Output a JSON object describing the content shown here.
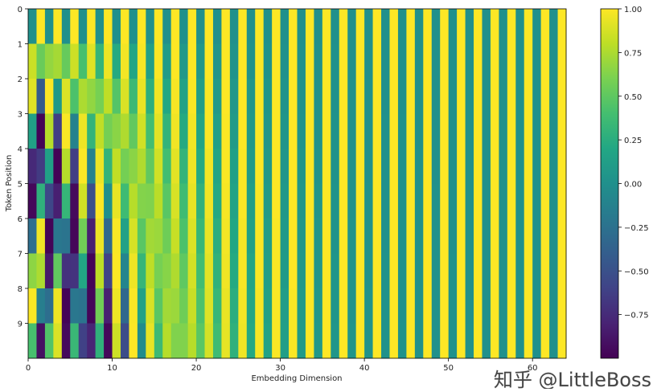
{
  "chart_data": {
    "type": "heatmap",
    "xlabel": "Embedding Dimension",
    "ylabel": "Token Position",
    "xlim": [
      0,
      64
    ],
    "ylim": [
      0,
      10
    ],
    "x_ticks": [
      "0",
      "10",
      "20",
      "30",
      "40",
      "50",
      "60"
    ],
    "y_ticks": [
      "0",
      "1",
      "2",
      "3",
      "4",
      "5",
      "6",
      "7",
      "8",
      "9"
    ],
    "colormap": "viridis",
    "color_range": [
      -1,
      1
    ],
    "colorbar_ticks": [
      "1.00",
      "0.75",
      "0.50",
      "0.25",
      "0.00",
      "−0.25",
      "−0.50",
      "−0.75"
    ],
    "grid": false,
    "rows": [
      [
        0,
        1,
        0,
        1,
        0,
        1,
        0,
        1,
        0,
        1,
        0,
        1,
        0,
        1,
        0,
        1,
        0,
        1,
        0,
        1,
        0,
        1,
        0,
        1,
        0,
        1,
        0,
        1,
        0,
        1,
        0,
        1,
        0,
        1,
        0,
        1,
        0,
        1,
        0,
        1,
        0,
        1,
        0,
        1,
        0,
        1,
        0,
        1,
        0,
        1,
        0,
        1,
        0,
        1,
        0,
        1,
        0,
        1,
        0,
        1,
        0,
        1,
        0,
        1
      ],
      [
        0.84,
        0.54,
        0.68,
        0.73,
        0.53,
        0.85,
        0.41,
        0.91,
        0.31,
        0.95,
        0.23,
        0.97,
        0.18,
        0.98,
        0.13,
        0.99,
        0.1,
        1,
        0.07,
        1,
        0.06,
        1,
        0.04,
        1,
        0.03,
        1,
        0.02,
        1,
        0.02,
        1,
        0.01,
        1,
        0.01,
        1,
        0.01,
        1,
        0.01,
        1,
        0,
        1,
        0,
        1,
        0,
        1,
        0,
        1,
        0,
        1,
        0,
        1,
        0,
        1,
        0,
        1,
        0,
        1,
        0,
        1,
        0,
        1,
        0,
        1,
        0,
        1
      ],
      [
        0.91,
        -0.42,
        1.0,
        0.07,
        0.9,
        0.43,
        0.75,
        0.67,
        0.59,
        0.81,
        0.46,
        0.89,
        0.35,
        0.94,
        0.26,
        0.96,
        0.2,
        0.98,
        0.15,
        0.99,
        0.11,
        0.99,
        0.08,
        1,
        0.06,
        1,
        0.05,
        1,
        0.04,
        1,
        0.03,
        1,
        0.02,
        1,
        0.02,
        1,
        0.01,
        1,
        0.01,
        1,
        0.01,
        1,
        0,
        1,
        0,
        1,
        0,
        1,
        0,
        1,
        0,
        1,
        0,
        1,
        0,
        1,
        0,
        1,
        0,
        1,
        0,
        1,
        0,
        1
      ],
      [
        0.14,
        -0.99,
        0.78,
        -0.63,
        0.99,
        -0.12,
        0.95,
        0.3,
        0.81,
        0.58,
        0.65,
        0.76,
        0.51,
        0.86,
        0.39,
        0.92,
        0.3,
        0.96,
        0.22,
        0.97,
        0.17,
        0.99,
        0.13,
        0.99,
        0.09,
        1,
        0.07,
        1,
        0.05,
        1,
        0.04,
        1,
        0.03,
        1,
        0.02,
        1,
        0.02,
        1,
        0.01,
        1,
        0.01,
        1,
        0.01,
        1,
        0.01,
        1,
        0,
        1,
        0,
        1,
        0,
        1,
        0,
        1,
        0,
        1,
        0,
        1,
        0,
        1,
        0,
        1,
        0,
        1
      ],
      [
        -0.76,
        -0.65,
        0.14,
        -0.99,
        0.78,
        -0.63,
        0.99,
        -0.12,
        0.95,
        0.3,
        0.81,
        0.58,
        0.65,
        0.76,
        0.51,
        0.86,
        0.39,
        0.92,
        0.3,
        0.96,
        0.22,
        0.97,
        0.17,
        0.99,
        0.13,
        0.99,
        0.09,
        1,
        0.07,
        1,
        0.05,
        1,
        0.04,
        1,
        0.03,
        1,
        0.02,
        1,
        0.02,
        1,
        0.01,
        1,
        0.01,
        1,
        0.01,
        1,
        0.01,
        1,
        0,
        1,
        0,
        1,
        0,
        1,
        0,
        1,
        0,
        1,
        0,
        1,
        0,
        1,
        0,
        1
      ],
      [
        -0.96,
        0.28,
        -0.57,
        -0.82,
        0.32,
        -0.95,
        0.86,
        -0.51,
        1.0,
        -0.01,
        0.93,
        0.37,
        0.78,
        0.63,
        0.62,
        0.79,
        0.48,
        0.88,
        0.37,
        0.93,
        0.28,
        0.96,
        0.21,
        0.98,
        0.16,
        0.99,
        0.12,
        0.99,
        0.09,
        1,
        0.07,
        1,
        0.05,
        1,
        0.04,
        1,
        0.03,
        1,
        0.02,
        1,
        0.02,
        1,
        0.01,
        1,
        0.01,
        1,
        0.01,
        1,
        0.01,
        1,
        0,
        1,
        0,
        1,
        0,
        1,
        0,
        1,
        0,
        1,
        0,
        1,
        0,
        1
      ],
      [
        -0.28,
        0.96,
        -0.98,
        -0.21,
        -0.23,
        -0.97,
        0.57,
        -0.82,
        0.95,
        -0.32,
        0.99,
        0.15,
        0.88,
        0.48,
        0.72,
        0.7,
        0.56,
        0.83,
        0.43,
        0.9,
        0.33,
        0.94,
        0.25,
        0.97,
        0.19,
        0.98,
        0.14,
        0.99,
        0.11,
        0.99,
        0.08,
        1,
        0.06,
        1,
        0.05,
        1,
        0.03,
        1,
        0.03,
        1,
        0.02,
        1,
        0.01,
        1,
        0.01,
        1,
        0.01,
        1,
        0.01,
        1,
        0,
        1,
        0,
        1,
        0,
        1,
        0,
        1,
        0,
        1,
        0,
        1,
        0,
        1
      ],
      [
        0.66,
        0.75,
        -0.86,
        0.51,
        -0.71,
        -0.7,
        0.19,
        -0.98,
        0.8,
        -0.6,
        1.0,
        -0.09,
        0.95,
        0.32,
        0.8,
        0.59,
        0.64,
        0.76,
        0.5,
        0.87,
        0.38,
        0.92,
        0.29,
        0.96,
        0.22,
        0.98,
        0.17,
        0.99,
        0.12,
        0.99,
        0.09,
        1,
        0.07,
        1,
        0.05,
        1,
        0.04,
        1,
        0.03,
        1,
        0.02,
        1,
        0.02,
        1,
        0.01,
        1,
        0.01,
        1,
        0.01,
        1,
        0.01,
        1,
        0,
        1,
        0,
        1,
        0,
        1,
        0,
        1,
        0,
        1,
        0,
        1
      ],
      [
        0.99,
        -0.15,
        -0.28,
        0.96,
        -0.98,
        -0.21,
        -0.23,
        -0.97,
        0.57,
        -0.82,
        0.95,
        -0.32,
        0.99,
        0.15,
        0.88,
        0.48,
        0.72,
        0.7,
        0.56,
        0.83,
        0.43,
        0.9,
        0.33,
        0.94,
        0.25,
        0.97,
        0.19,
        0.98,
        0.14,
        0.99,
        0.11,
        0.99,
        0.08,
        1,
        0.06,
        1,
        0.04,
        1,
        0.03,
        1,
        0.03,
        1,
        0.02,
        1,
        0.01,
        1,
        0.01,
        1,
        0.01,
        1,
        0.01,
        1,
        0,
        1,
        0,
        1,
        0,
        1,
        0,
        1,
        0,
        1,
        0,
        1
      ],
      [
        0.41,
        -0.91,
        0.45,
        0.89,
        -0.95,
        0.34,
        -0.61,
        -0.79,
        0.29,
        -0.96,
        0.85,
        -0.53,
        1.0,
        -0.03,
        0.93,
        0.36,
        0.78,
        0.62,
        0.62,
        0.78,
        0.48,
        0.87,
        0.37,
        0.93,
        0.28,
        0.96,
        0.21,
        0.98,
        0.16,
        0.99,
        0.12,
        0.99,
        0.09,
        1,
        0.07,
        1,
        0.05,
        1,
        0.04,
        1,
        0.03,
        1,
        0.02,
        1,
        0.02,
        1,
        0.01,
        1,
        0.01,
        1,
        0.01,
        1,
        0.01,
        1,
        0,
        1,
        0,
        1,
        0,
        1,
        0,
        1,
        0,
        1
      ]
    ]
  },
  "watermark": "知乎 @LittleBoss"
}
